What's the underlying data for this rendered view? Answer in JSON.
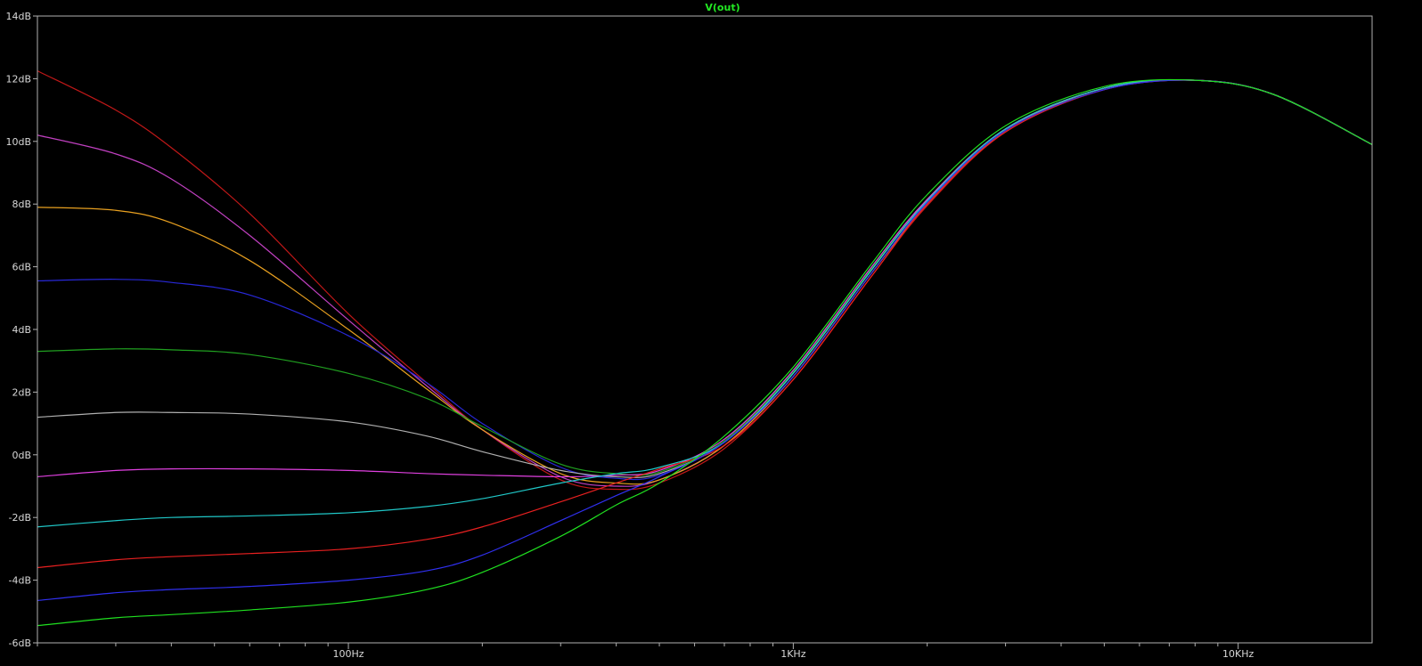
{
  "chart_data": {
    "type": "line",
    "title": "V(out)",
    "title_color": "#22e822",
    "x_scale": "log",
    "x_unit": "Hz",
    "xlim": [
      20,
      20000
    ],
    "ylim": [
      -6,
      14
    ],
    "y_ticks": [
      {
        "value": 14,
        "label": "14dB"
      },
      {
        "value": 12,
        "label": "12dB"
      },
      {
        "value": 10,
        "label": "10dB"
      },
      {
        "value": 8,
        "label": "8dB"
      },
      {
        "value": 6,
        "label": "6dB"
      },
      {
        "value": 4,
        "label": "4dB"
      },
      {
        "value": 2,
        "label": "2dB"
      },
      {
        "value": 0,
        "label": "0dB"
      },
      {
        "value": -2,
        "label": "-2dB"
      },
      {
        "value": -4,
        "label": "-4dB"
      },
      {
        "value": -6,
        "label": "-6dB"
      }
    ],
    "x_ticks": [
      {
        "value": 100,
        "label": "100Hz"
      },
      {
        "value": 1000,
        "label": "1KHz"
      },
      {
        "value": 10000,
        "label": "10KHz"
      }
    ],
    "x_minor_ticks": [
      20,
      30,
      40,
      50,
      60,
      70,
      80,
      90,
      200,
      300,
      400,
      500,
      600,
      700,
      800,
      900,
      2000,
      3000,
      4000,
      5000,
      6000,
      7000,
      8000,
      9000
    ],
    "x": [
      20,
      30,
      40,
      60,
      100,
      150,
      200,
      300,
      400,
      500,
      700,
      1000,
      1500,
      2000,
      3000,
      5000,
      8000,
      12000,
      20000
    ],
    "series": [
      {
        "color": "#c01818",
        "values": [
          12.25,
          11.0,
          9.8,
          7.7,
          4.5,
          2.3,
          0.8,
          -0.8,
          -1.1,
          -0.9,
          0.2,
          2.4,
          5.7,
          7.95,
          10.3,
          11.65,
          11.95,
          11.5,
          9.9
        ]
      },
      {
        "color": "#c040c0",
        "values": [
          10.2,
          9.6,
          8.8,
          7.0,
          4.3,
          2.2,
          0.8,
          -0.7,
          -1.0,
          -0.8,
          0.3,
          2.5,
          5.8,
          8.0,
          10.35,
          11.7,
          11.95,
          11.5,
          9.9
        ]
      },
      {
        "color": "#e8a020",
        "values": [
          7.9,
          7.8,
          7.4,
          6.2,
          4.0,
          2.1,
          0.8,
          -0.6,
          -0.9,
          -0.8,
          0.3,
          2.5,
          5.8,
          8.0,
          10.35,
          11.7,
          11.95,
          11.5,
          9.9
        ]
      },
      {
        "color": "#2828d8",
        "values": [
          5.55,
          5.6,
          5.5,
          5.1,
          3.8,
          2.3,
          1.0,
          -0.4,
          -0.75,
          -0.65,
          0.4,
          2.6,
          5.9,
          8.1,
          10.4,
          11.7,
          11.95,
          11.5,
          9.9
        ]
      },
      {
        "color": "#20a020",
        "values": [
          3.3,
          3.38,
          3.35,
          3.2,
          2.6,
          1.8,
          0.9,
          -0.3,
          -0.6,
          -0.55,
          0.45,
          2.65,
          5.95,
          8.15,
          10.4,
          11.7,
          11.95,
          11.5,
          9.9
        ]
      },
      {
        "color": "#b0b0b0",
        "values": [
          1.2,
          1.35,
          1.35,
          1.3,
          1.05,
          0.6,
          0.1,
          -0.5,
          -0.7,
          -0.6,
          0.4,
          2.6,
          5.9,
          8.1,
          10.4,
          11.7,
          11.95,
          11.5,
          9.9
        ]
      },
      {
        "color": "#e040e0",
        "values": [
          -0.7,
          -0.5,
          -0.45,
          -0.45,
          -0.5,
          -0.6,
          -0.65,
          -0.7,
          -0.65,
          -0.5,
          0.5,
          2.7,
          6.0,
          8.15,
          10.4,
          11.7,
          11.95,
          11.5,
          9.9
        ]
      },
      {
        "color": "#20c8c8",
        "values": [
          -2.3,
          -2.1,
          -2.0,
          -1.95,
          -1.85,
          -1.65,
          -1.4,
          -0.9,
          -0.6,
          -0.4,
          0.4,
          2.6,
          5.9,
          8.1,
          10.4,
          11.7,
          11.95,
          11.5,
          9.9
        ]
      },
      {
        "color": "#e82020",
        "values": [
          -3.6,
          -3.35,
          -3.25,
          -3.15,
          -3.0,
          -2.7,
          -2.3,
          -1.5,
          -0.9,
          -0.45,
          0.3,
          2.4,
          5.7,
          8.0,
          10.3,
          11.65,
          11.95,
          11.5,
          9.9
        ]
      },
      {
        "color": "#3030f0",
        "values": [
          -4.65,
          -4.4,
          -4.3,
          -4.2,
          -4.0,
          -3.7,
          -3.2,
          -2.1,
          -1.3,
          -0.7,
          0.4,
          2.5,
          5.8,
          8.05,
          10.35,
          11.65,
          11.95,
          11.5,
          9.9
        ]
      },
      {
        "color": "#20e020",
        "values": [
          -5.45,
          -5.2,
          -5.1,
          -4.95,
          -4.7,
          -4.3,
          -3.75,
          -2.6,
          -1.6,
          -0.9,
          0.6,
          2.8,
          6.1,
          8.3,
          10.5,
          11.75,
          11.95,
          11.5,
          9.9
        ]
      }
    ]
  }
}
